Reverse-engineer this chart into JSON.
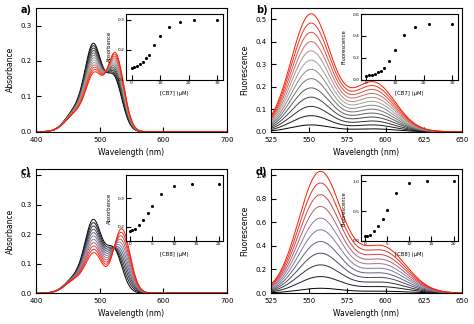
{
  "n_curves_ab": 13,
  "n_curves_cd": 11,
  "background_color": "#ffffff",
  "panel_labels": [
    "a)",
    "b)",
    "c)",
    "d)"
  ]
}
